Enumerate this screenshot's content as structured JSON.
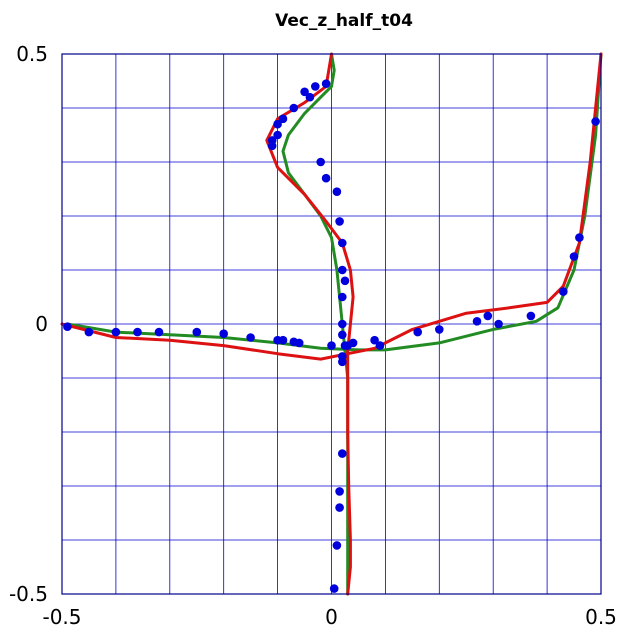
{
  "chart_data": {
    "type": "line",
    "title": "Vec_z_half_t04",
    "xlabel": "",
    "ylabel": "",
    "xlim": [
      -0.5,
      0.5
    ],
    "ylim": [
      -0.5,
      0.5
    ],
    "x_tick_labels": [
      "-0.5",
      "0",
      "0.5"
    ],
    "y_tick_labels": [
      "0.5",
      "0",
      "-0.5"
    ],
    "x_ticks": [
      -0.5,
      0,
      0.5
    ],
    "y_ticks": [
      0.5,
      0,
      -0.5
    ],
    "grid": true,
    "grid_step": 0.1,
    "colors": {
      "axes": "#00008b",
      "grid": "#0000cc",
      "green_line": "#228b22",
      "red_line": "#dd1111",
      "points": "#0000dd"
    },
    "series": [
      {
        "kind": "line",
        "color": "#228b22",
        "x": [
          -0.49,
          -0.4,
          -0.3,
          -0.2,
          -0.1,
          -0.02,
          0.05,
          0.1,
          0.2,
          0.3,
          0.38,
          0.42,
          0.45,
          0.47,
          0.49,
          0.5
        ],
        "y": [
          0.0,
          -0.015,
          -0.02,
          -0.025,
          -0.035,
          -0.045,
          -0.048,
          -0.048,
          -0.035,
          -0.01,
          0.005,
          0.03,
          0.1,
          0.2,
          0.35,
          0.5
        ],
        "x2": [
          0.0,
          0.005,
          0.0,
          -0.02,
          -0.05,
          -0.08,
          -0.09,
          -0.08,
          -0.05,
          -0.02,
          0.0,
          0.005,
          0.01,
          0.015,
          0.02,
          0.025,
          0.03,
          0.03,
          0.03,
          0.03,
          0.03
        ],
        "y2": [
          0.5,
          0.47,
          0.44,
          0.42,
          0.39,
          0.35,
          0.32,
          0.28,
          0.24,
          0.2,
          0.16,
          0.13,
          0.1,
          0.05,
          0.0,
          -0.05,
          -0.1,
          -0.2,
          -0.3,
          -0.4,
          -0.5
        ]
      },
      {
        "kind": "line",
        "color": "#dd1111",
        "x": [
          -0.5,
          -0.4,
          -0.3,
          -0.2,
          -0.1,
          -0.02,
          0.03,
          0.08,
          0.15,
          0.25,
          0.33,
          0.4,
          0.43,
          0.46,
          0.48,
          0.5
        ],
        "y": [
          0.0,
          -0.025,
          -0.03,
          -0.04,
          -0.055,
          -0.065,
          -0.055,
          -0.045,
          -0.01,
          0.02,
          0.03,
          0.04,
          0.07,
          0.15,
          0.3,
          0.5
        ],
        "x2": [
          0.0,
          -0.01,
          -0.05,
          -0.1,
          -0.12,
          -0.1,
          -0.05,
          -0.01,
          0.02,
          0.035,
          0.04,
          0.035,
          0.03,
          0.03,
          0.03,
          0.032,
          0.035,
          0.035,
          0.03
        ],
        "y2": [
          0.5,
          0.44,
          0.41,
          0.38,
          0.34,
          0.29,
          0.24,
          0.19,
          0.15,
          0.1,
          0.05,
          0.0,
          -0.05,
          -0.1,
          -0.2,
          -0.3,
          -0.4,
          -0.45,
          -0.5
        ]
      },
      {
        "kind": "scatter",
        "color": "#0000dd",
        "x": [
          -0.49,
          -0.45,
          -0.4,
          -0.36,
          -0.32,
          -0.25,
          -0.2,
          -0.15,
          -0.1,
          -0.09,
          -0.07,
          -0.06,
          0.0,
          0.02,
          0.025,
          0.02,
          0.03,
          0.04,
          0.08,
          0.09,
          0.16,
          0.2,
          0.27,
          0.29,
          0.31,
          0.37,
          0.43,
          0.45,
          0.46,
          0.49,
          -0.01,
          -0.03,
          -0.05,
          -0.07,
          -0.09,
          -0.1,
          -0.11,
          -0.11,
          -0.1,
          -0.04,
          -0.02,
          -0.01,
          0.01,
          0.015,
          0.02,
          0.02,
          0.025,
          0.02,
          0.02,
          0.02,
          0.02,
          0.015,
          0.015,
          0.01,
          0.005
        ],
        "y": [
          -0.005,
          -0.015,
          -0.015,
          -0.015,
          -0.015,
          -0.015,
          -0.018,
          -0.025,
          -0.03,
          -0.03,
          -0.033,
          -0.035,
          -0.04,
          -0.02,
          -0.04,
          -0.06,
          -0.04,
          -0.035,
          -0.03,
          -0.04,
          -0.015,
          -0.01,
          0.005,
          0.015,
          0.0,
          0.015,
          0.06,
          0.125,
          0.16,
          0.375,
          0.445,
          0.44,
          0.43,
          0.4,
          0.38,
          0.35,
          0.33,
          0.34,
          0.37,
          0.42,
          0.3,
          0.27,
          0.245,
          0.19,
          0.15,
          0.1,
          0.08,
          0.05,
          0.0,
          -0.07,
          -0.24,
          -0.31,
          -0.34,
          -0.41,
          -0.49
        ]
      }
    ]
  }
}
